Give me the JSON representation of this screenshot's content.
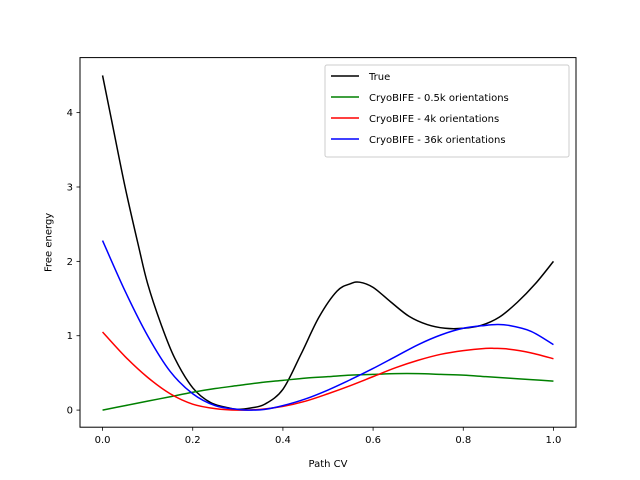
{
  "chart_data": {
    "type": "line",
    "title": "",
    "xlabel": "Path CV",
    "ylabel": "Free energy",
    "xlim": [
      -0.05,
      1.05
    ],
    "ylim": [
      -0.23,
      4.74
    ],
    "xticks": [
      0.0,
      0.2,
      0.4,
      0.6,
      0.8,
      1.0
    ],
    "xtick_labels": [
      "0.0",
      "0.2",
      "0.4",
      "0.6",
      "0.8",
      "1.0"
    ],
    "yticks": [
      0,
      1,
      2,
      3,
      4
    ],
    "ytick_labels": [
      "0",
      "1",
      "2",
      "3",
      "4"
    ],
    "grid": false,
    "legend_position": "top-right",
    "series": [
      {
        "name": "True",
        "color": "#000000",
        "x": [
          0.0,
          0.02,
          0.05,
          0.08,
          0.1,
          0.13,
          0.16,
          0.2,
          0.24,
          0.28,
          0.3,
          0.33,
          0.36,
          0.4,
          0.44,
          0.48,
          0.52,
          0.55,
          0.57,
          0.6,
          0.64,
          0.68,
          0.72,
          0.76,
          0.8,
          0.84,
          0.88,
          0.92,
          0.96,
          1.0
        ],
        "y": [
          4.5,
          3.9,
          3.0,
          2.2,
          1.7,
          1.15,
          0.7,
          0.3,
          0.1,
          0.03,
          0.01,
          0.03,
          0.08,
          0.28,
          0.75,
          1.25,
          1.6,
          1.7,
          1.72,
          1.65,
          1.45,
          1.26,
          1.15,
          1.1,
          1.1,
          1.14,
          1.25,
          1.45,
          1.7,
          2.0
        ]
      },
      {
        "name": "CryoBIFE - 0.5k orientations",
        "color": "#008000",
        "x": [
          0.0,
          0.05,
          0.1,
          0.15,
          0.2,
          0.25,
          0.3,
          0.35,
          0.4,
          0.45,
          0.5,
          0.55,
          0.6,
          0.65,
          0.7,
          0.75,
          0.8,
          0.85,
          0.9,
          0.95,
          1.0
        ],
        "y": [
          0.0,
          0.06,
          0.12,
          0.18,
          0.24,
          0.29,
          0.33,
          0.37,
          0.4,
          0.43,
          0.45,
          0.47,
          0.48,
          0.49,
          0.49,
          0.48,
          0.47,
          0.45,
          0.43,
          0.41,
          0.39
        ]
      },
      {
        "name": "CryoBIFE - 4k orientations",
        "color": "#ff0000",
        "x": [
          0.0,
          0.05,
          0.1,
          0.15,
          0.2,
          0.25,
          0.3,
          0.35,
          0.4,
          0.45,
          0.5,
          0.55,
          0.6,
          0.65,
          0.7,
          0.75,
          0.8,
          0.85,
          0.87,
          0.9,
          0.95,
          1.0
        ],
        "y": [
          1.05,
          0.72,
          0.44,
          0.22,
          0.08,
          0.02,
          0.0,
          0.01,
          0.05,
          0.12,
          0.22,
          0.33,
          0.45,
          0.57,
          0.67,
          0.75,
          0.8,
          0.83,
          0.83,
          0.82,
          0.77,
          0.69
        ]
      },
      {
        "name": "CryoBIFE - 36k orientations",
        "color": "#0000ff",
        "x": [
          0.0,
          0.05,
          0.1,
          0.15,
          0.2,
          0.25,
          0.3,
          0.33,
          0.36,
          0.4,
          0.45,
          0.5,
          0.55,
          0.6,
          0.65,
          0.7,
          0.75,
          0.8,
          0.85,
          0.87,
          0.9,
          0.95,
          1.0
        ],
        "y": [
          2.28,
          1.6,
          1.0,
          0.52,
          0.22,
          0.06,
          0.01,
          0.0,
          0.01,
          0.06,
          0.15,
          0.27,
          0.41,
          0.56,
          0.72,
          0.88,
          1.01,
          1.1,
          1.14,
          1.15,
          1.14,
          1.06,
          0.88
        ]
      }
    ]
  }
}
